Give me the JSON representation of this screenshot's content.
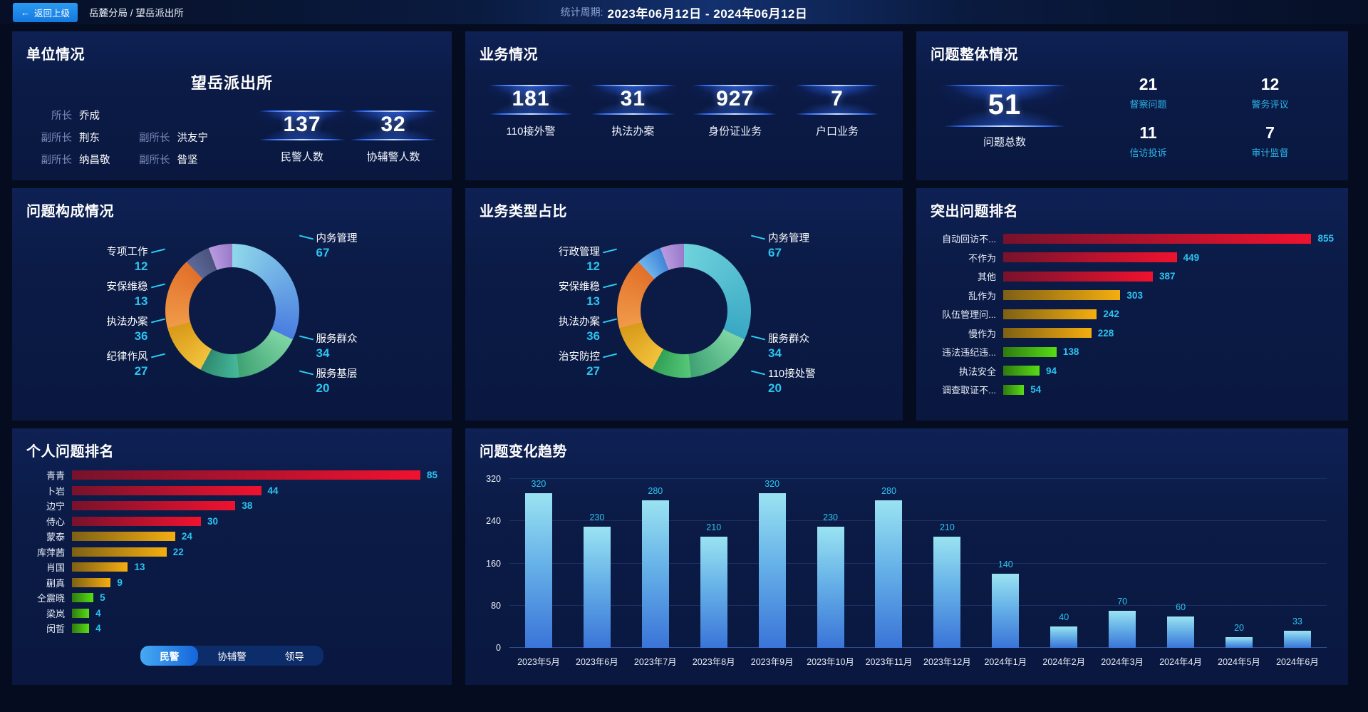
{
  "topbar": {
    "back_label": "返回上级",
    "breadcrumb": "岳麓分局 / 望岳派出所",
    "period_label": "统计周期:",
    "period_value": "2023年06月12日 - 2024年06月12日"
  },
  "unit_panel": {
    "title": "单位情况",
    "station_name": "望岳派出所",
    "leaders": [
      {
        "role": "所长",
        "name": "乔成"
      },
      {
        "role": "副所长",
        "name": "荆东"
      },
      {
        "role": "副所长",
        "name": "洪友宁"
      },
      {
        "role": "副所长",
        "name": "纳昌敬"
      },
      {
        "role": "副所长",
        "name": "昝坚"
      }
    ],
    "stats": [
      {
        "value": "137",
        "label": "民警人数"
      },
      {
        "value": "32",
        "label": "协辅警人数"
      }
    ]
  },
  "business_panel": {
    "title": "业务情况",
    "stats": [
      {
        "value": "181",
        "label": "110接外警"
      },
      {
        "value": "31",
        "label": "执法办案"
      },
      {
        "value": "927",
        "label": "身份证业务"
      },
      {
        "value": "7",
        "label": "户口业务"
      }
    ]
  },
  "overview_panel": {
    "title": "问题整体情况",
    "total": {
      "value": "51",
      "label": "问题总数"
    },
    "stats": [
      {
        "value": "21",
        "label": "督察问题"
      },
      {
        "value": "12",
        "label": "警务评议"
      },
      {
        "value": "11",
        "label": "信访投诉"
      },
      {
        "value": "7",
        "label": "审计监督"
      }
    ]
  },
  "colors": {
    "accent_cyan": "#2bc4f0",
    "bar_red": [
      "#77122c",
      "#f0122e"
    ],
    "bar_gold": [
      "#7e6014",
      "#f5ae10"
    ],
    "bar_green": [
      "#2f7a10",
      "#57dd14"
    ],
    "trend_bar": [
      "#9ae3f2",
      "#3a74d8"
    ],
    "back_button_blue": "#1e88e8"
  },
  "chart_data": [
    {
      "type": "pie",
      "title": "问题构成情况",
      "series": [
        {
          "name": "内务管理",
          "value": 67,
          "c1": "#8fd8ea",
          "c2": "#4a7de0"
        },
        {
          "name": "服务群众",
          "value": 34,
          "c1": "#7fd6a4",
          "c2": "#3fa273"
        },
        {
          "name": "服务基层",
          "value": 20,
          "c1": "#46b89a",
          "c2": "#2e8a70"
        },
        {
          "name": "纪律作风",
          "value": 27,
          "c1": "#f2c23c",
          "c2": "#d89a18"
        },
        {
          "name": "执法办案",
          "value": 36,
          "c1": "#f09a48",
          "c2": "#e2702a"
        },
        {
          "name": "安保维稳",
          "value": 13,
          "c1": "#5c6898",
          "c2": "#4a547e"
        },
        {
          "name": "专项工作",
          "value": 12,
          "c1": "#b89ae0",
          "c2": "#9a7ac8"
        }
      ],
      "left_labels": [
        "专项工作",
        "安保维稳",
        "执法办案",
        "纪律作风"
      ],
      "right_labels": [
        "内务管理",
        "服务群众",
        "服务基层"
      ]
    },
    {
      "type": "pie",
      "title": "业务类型占比",
      "series": [
        {
          "name": "内务管理",
          "value": 67,
          "c1": "#6fd2dc",
          "c2": "#39a8c4"
        },
        {
          "name": "服务群众",
          "value": 34,
          "c1": "#7fd6a4",
          "c2": "#3fa273"
        },
        {
          "name": "110接处警",
          "value": 20,
          "c1": "#57c87a",
          "c2": "#2fa055"
        },
        {
          "name": "治安防控",
          "value": 27,
          "c1": "#f2c23c",
          "c2": "#d89a18"
        },
        {
          "name": "执法办案",
          "value": 36,
          "c1": "#f09a48",
          "c2": "#e2702a"
        },
        {
          "name": "安保维稳",
          "value": 13,
          "c1": "#6fb4ec",
          "c2": "#3f86d8"
        },
        {
          "name": "行政管理",
          "value": 12,
          "c1": "#b89ae0",
          "c2": "#9a7ac8"
        }
      ],
      "left_labels": [
        "行政管理",
        "安保维稳",
        "执法办案",
        "治安防控"
      ],
      "right_labels": [
        "内务管理",
        "服务群众",
        "110接处警"
      ]
    },
    {
      "type": "bar",
      "orientation": "horizontal",
      "title": "突出问题排名",
      "categories": [
        "自动回访不...",
        "不作为",
        "其他",
        "乱作为",
        "队伍管理问...",
        "慢作为",
        "违法违纪违...",
        "执法安全",
        "调查取证不..."
      ],
      "values": [
        855,
        449,
        387,
        303,
        242,
        228,
        138,
        94,
        54
      ],
      "tiers": [
        "red",
        "red",
        "red",
        "gold",
        "gold",
        "gold",
        "green",
        "green",
        "green"
      ]
    },
    {
      "type": "bar",
      "orientation": "horizontal",
      "title": "个人问题排名",
      "categories": [
        "青青",
        "卜岩",
        "边宁",
        "侍心",
        "蒙泰",
        "库萍茜",
        "肖国",
        "蒯真",
        "仝震晓",
        "梁岚",
        "闵哲"
      ],
      "values": [
        85,
        44,
        38,
        30,
        24,
        22,
        13,
        9,
        5,
        4,
        4
      ],
      "tiers": [
        "red",
        "red",
        "red",
        "red",
        "gold",
        "gold",
        "gold",
        "gold",
        "green",
        "green",
        "green"
      ],
      "tabs": [
        "民警",
        "协辅警",
        "领导"
      ],
      "active_tab": "民警"
    },
    {
      "type": "bar",
      "orientation": "vertical",
      "title": "问题变化趋势",
      "categories": [
        "2023年5月",
        "2023年6月",
        "2023年7月",
        "2023年8月",
        "2023年9月",
        "2023年10月",
        "2023年11月",
        "2023年12月",
        "2024年1月",
        "2024年2月",
        "2024年3月",
        "2024年4月",
        "2024年5月",
        "2024年6月"
      ],
      "values": [
        320,
        230,
        280,
        210,
        320,
        230,
        280,
        210,
        140,
        40,
        70,
        60,
        20,
        33
      ],
      "yticks": [
        0,
        80,
        160,
        240,
        320
      ],
      "ylim": [
        0,
        320
      ]
    }
  ]
}
